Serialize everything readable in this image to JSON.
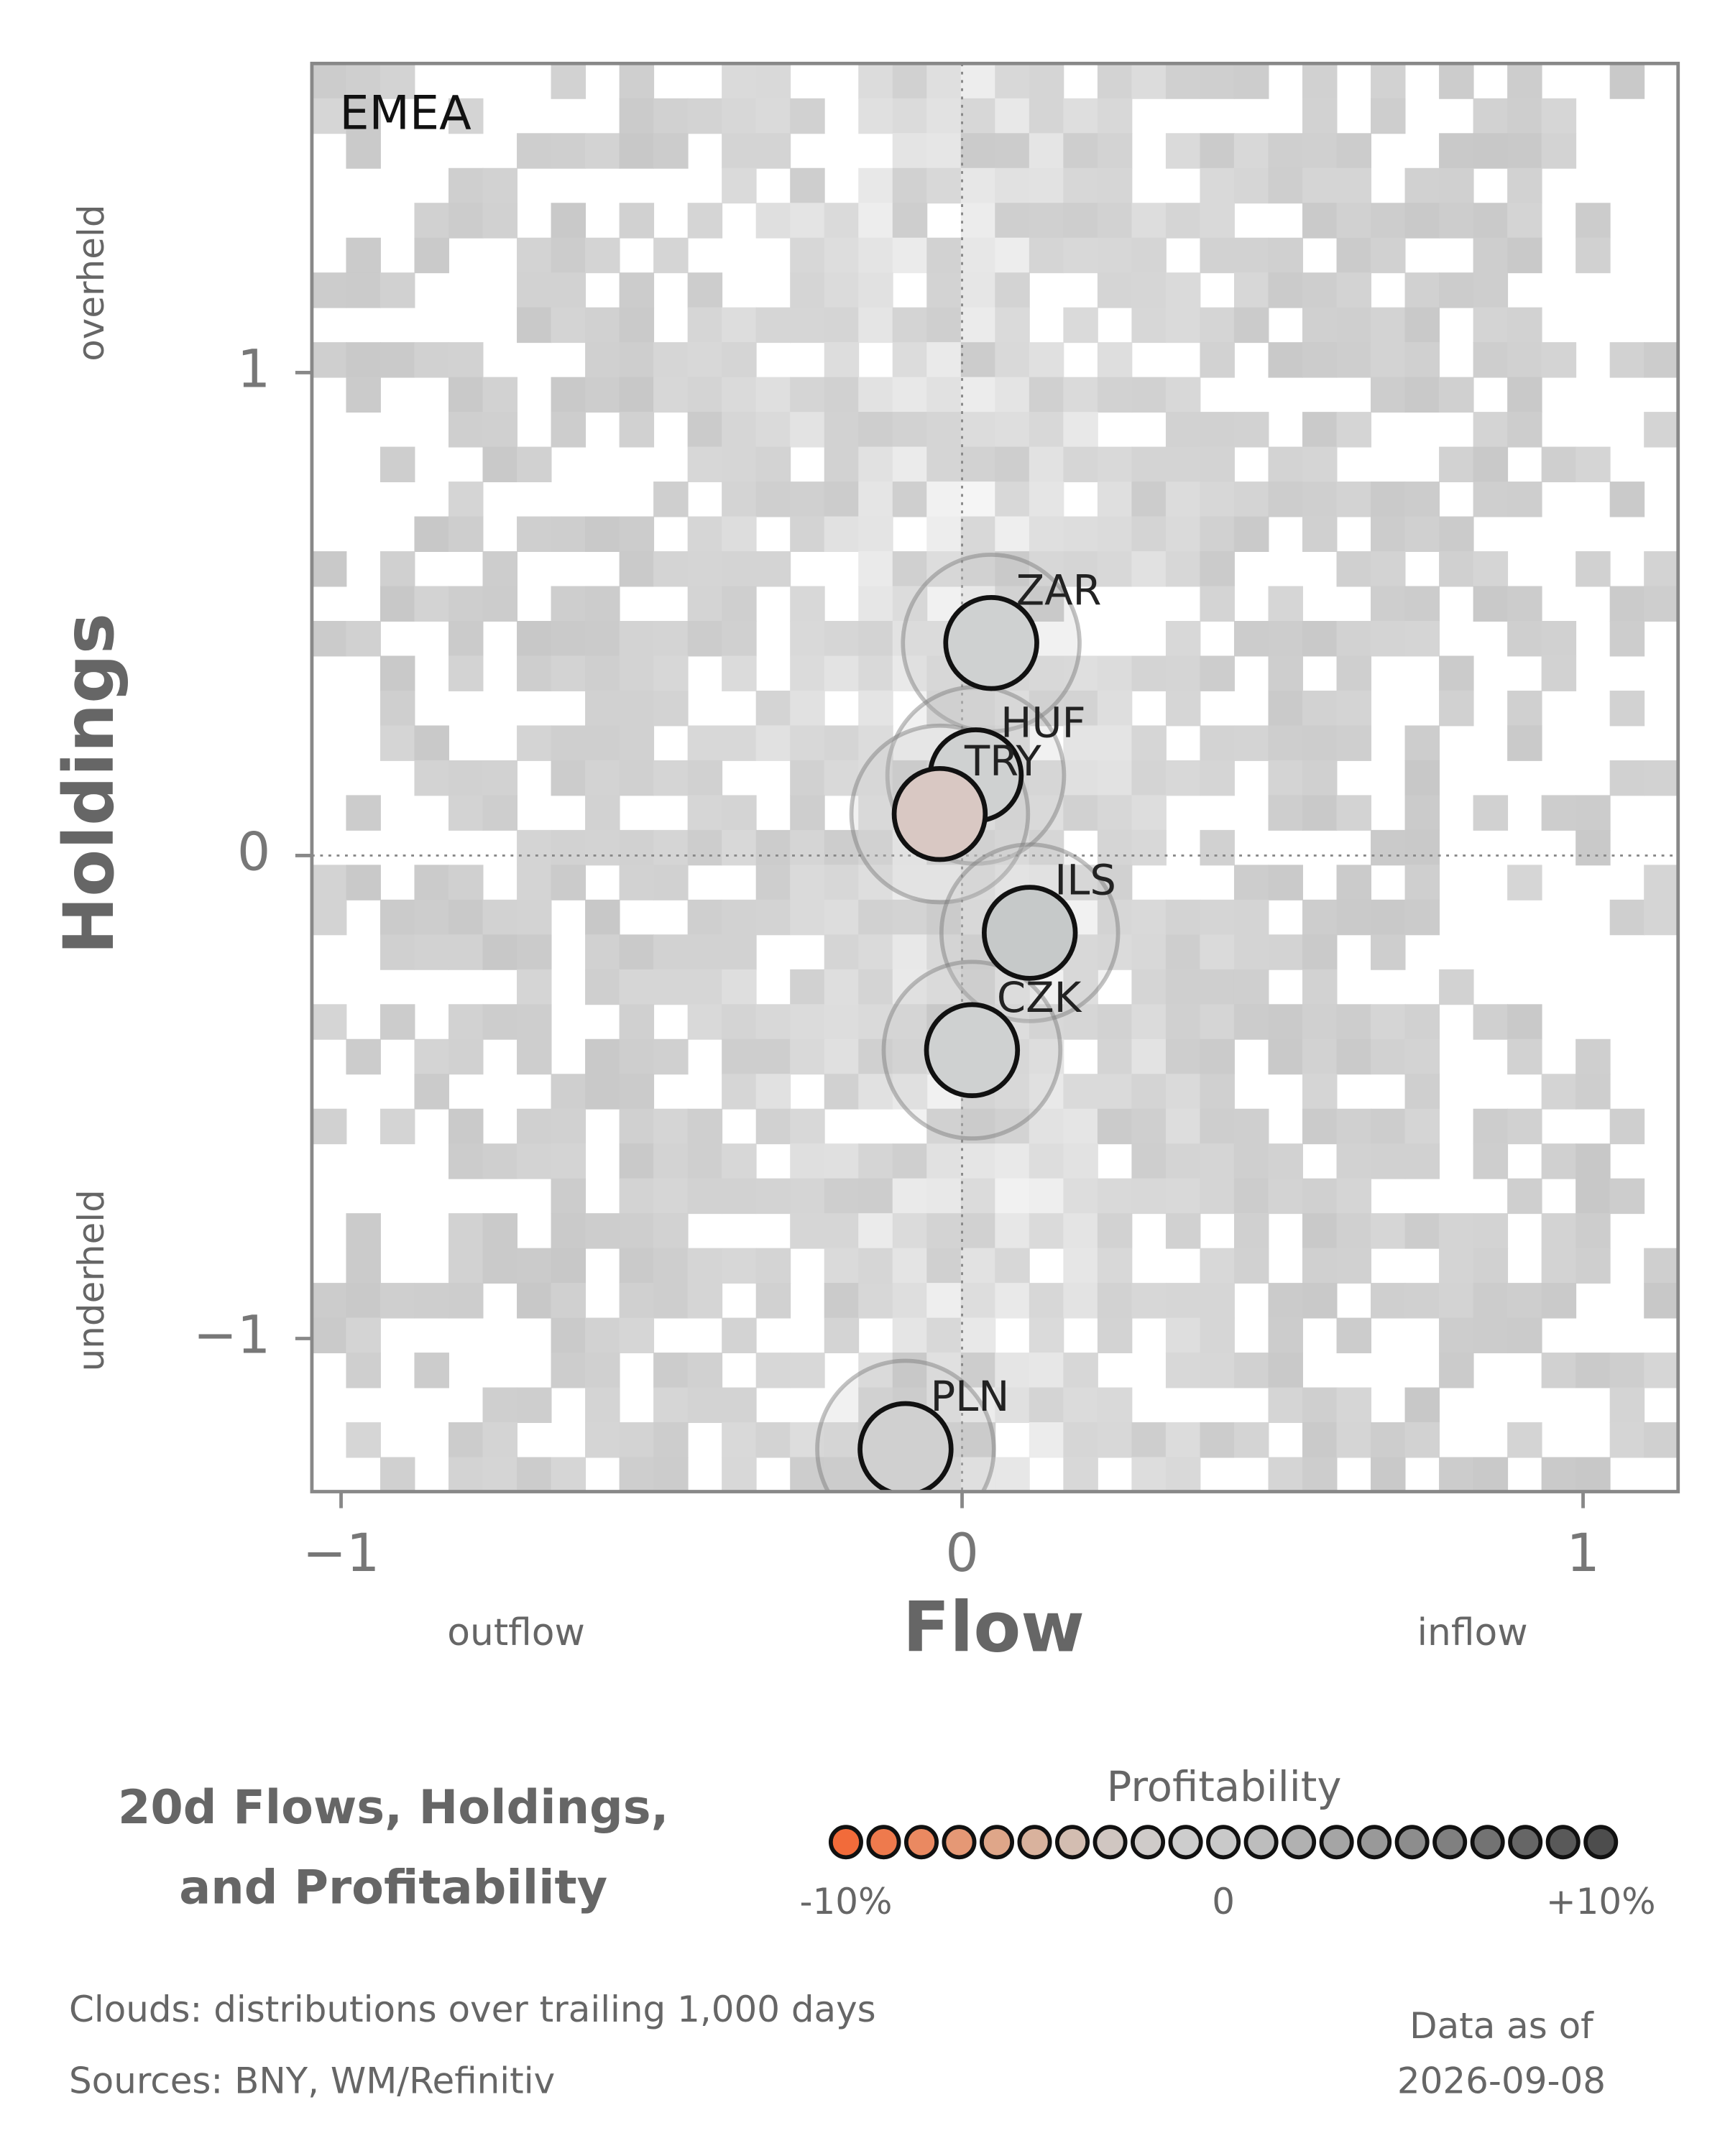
{
  "chart_data": {
    "type": "scatter",
    "panel_label": "EMEA",
    "x_label": "Flow",
    "y_label": "Holdings",
    "x_low_label": "outflow",
    "x_high_label": "inflow",
    "y_high_label": "overheld",
    "y_low_label": "underheld",
    "xlim": [
      -1.047,
      1.153
    ],
    "ylim": [
      -1.317,
      1.64
    ],
    "xticks": [
      {
        "value": -1,
        "label": "−1"
      },
      0,
      1
    ],
    "yticks": [
      {
        "value": -1,
        "label": "−1"
      },
      0,
      1
    ],
    "labels": [
      "ZAR",
      "HUF",
      "TRY",
      "ILS",
      "CZK",
      "PLN"
    ],
    "x": [
      0.047,
      0.022,
      -0.036,
      0.109,
      0.016,
      -0.091
    ],
    "y": [
      0.44,
      0.166,
      0.086,
      -0.16,
      -0.403,
      -1.229
    ],
    "colors": [
      "#cfd1d1",
      "#cfd1d1",
      "#d9c8c3",
      "#c6c9c9",
      "#cfd1d1",
      "#d0d0d0"
    ]
  },
  "title_lines": [
    "20d Flows, Holdings,",
    "and Profitability"
  ],
  "colorbar": {
    "title": "Profitability",
    "ticks": [
      {
        "value": -10,
        "label": "-10%"
      },
      0,
      {
        "value": 10,
        "label": "+10%"
      }
    ],
    "range": [
      -10,
      10
    ],
    "colors": [
      "#f26b3a",
      "#ee7a4d",
      "#ea8961",
      "#e59875",
      "#dfa689",
      "#d9b29d",
      "#d3bdb1",
      "#d0c6c1",
      "#cfcbc9",
      "#cdcdcd",
      "#c9c9c9",
      "#bdbdbd",
      "#b1b1b1",
      "#a5a5a5",
      "#999999",
      "#8d8d8d",
      "#808080",
      "#737373",
      "#666666",
      "#595959",
      "#4d4d4d"
    ]
  },
  "footer": {
    "notes": [
      "Clouds:  distributions over trailing 1,000 days",
      "Sources:  BNY, WM/Refinitiv"
    ],
    "as_of_label": "Data as of",
    "as_of_date": "2026-09-08"
  }
}
